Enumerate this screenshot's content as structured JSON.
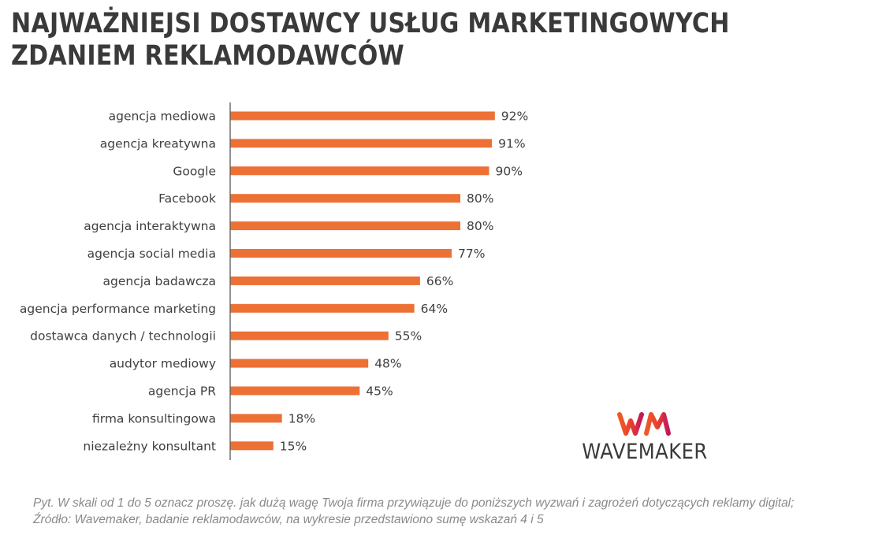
{
  "title": {
    "line1": "NAJWAŻNIEJSI DOSTAWCY USŁUG MARKETINGOWYCH",
    "line2": "ZDANIEM REKLAMODAWCÓW"
  },
  "colors": {
    "bar": "#ED7035",
    "axis": "#595959"
  },
  "chart_data": {
    "type": "bar",
    "orientation": "horizontal",
    "categories": [
      "agencja mediowa",
      "agencja kreatywna",
      "Google",
      "Facebook",
      "agencja interaktywna",
      "agencja social media",
      "agencja badawcza",
      "agencja performance marketing",
      "dostawca danych / technologii",
      "audytor mediowy",
      "agencja PR",
      "firma konsultingowa",
      "niezależny konsultant"
    ],
    "values": [
      92,
      91,
      90,
      80,
      80,
      77,
      66,
      64,
      55,
      48,
      45,
      18,
      15
    ],
    "value_labels": [
      "92%",
      "91%",
      "90%",
      "80%",
      "80%",
      "77%",
      "66%",
      "64%",
      "55%",
      "48%",
      "45%",
      "18%",
      "15%"
    ],
    "xlim": [
      0,
      100
    ],
    "grid": false,
    "legend": "none"
  },
  "logo": {
    "mark": "WM",
    "text": "WAVEMAKER",
    "icon": "wavemaker-logo"
  },
  "footnote": {
    "line1": "Pyt. W skali od 1 do 5 oznacz proszę. jak dużą wagę Twoja firma przywiązuje do poniższych wyzwań i zagrożeń dotyczących reklamy digital;",
    "line2": "Źródło: Wavemaker, badanie reklamodawców, na wykresie przedstawiono sumę wskazań 4 i 5"
  }
}
